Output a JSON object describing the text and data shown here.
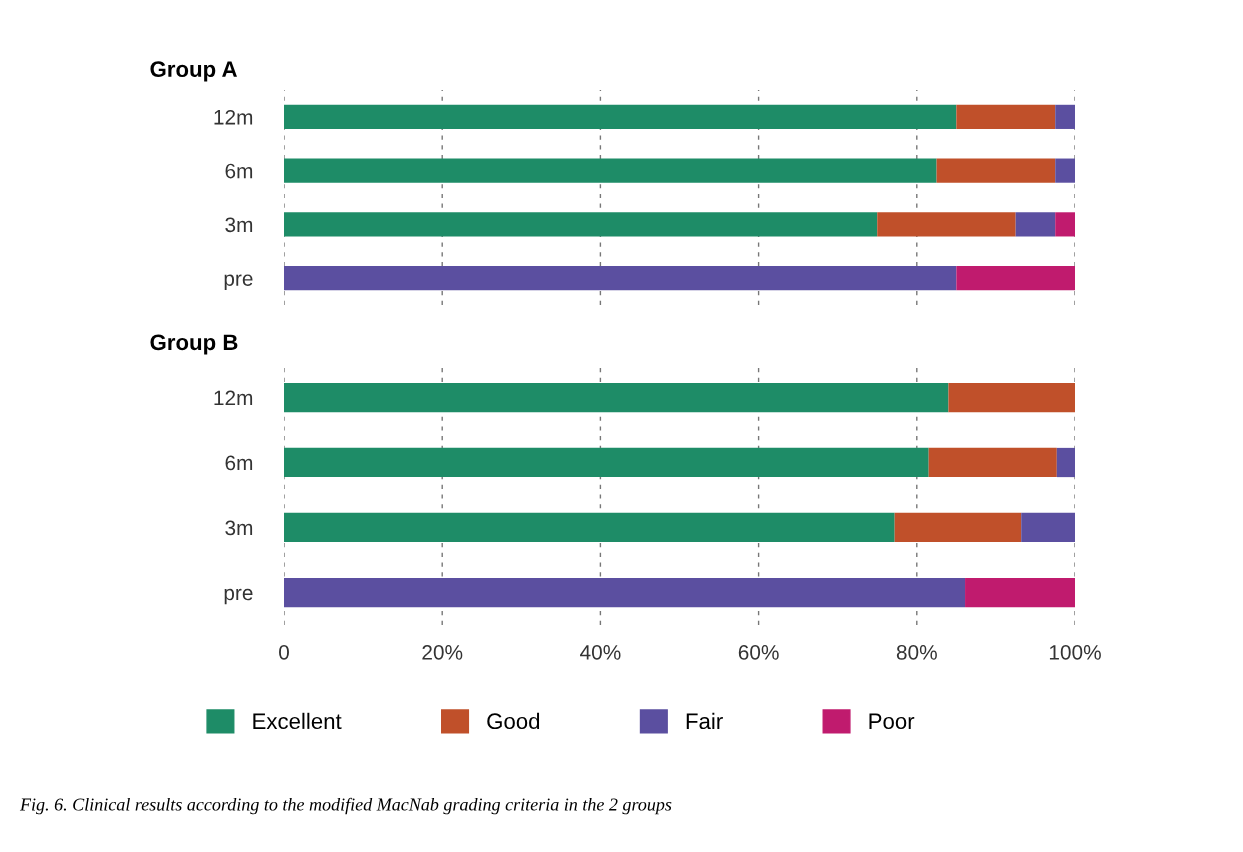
{
  "chart_data": [
    {
      "type": "bar",
      "orientation": "horizontal",
      "stacked": true,
      "title": "Group A",
      "categories": [
        "12m",
        "6m",
        "3m",
        "pre"
      ],
      "xlim": [
        0,
        100
      ],
      "xticks": [
        {
          "value": 0,
          "label": null
        },
        {
          "value": 20,
          "label": null
        },
        {
          "value": 40,
          "label": null
        },
        {
          "value": 60,
          "label": null
        },
        {
          "value": 80,
          "label": null
        },
        {
          "value": 100,
          "label": null
        }
      ],
      "tick_labels": "y",
      "grid": "x",
      "legend": false,
      "series": [
        {
          "color": "#1e8c67",
          "values": [
            85,
            82.5,
            75,
            0
          ]
        },
        {
          "color": "#c0502a",
          "values": [
            12.5,
            15,
            17.5,
            0
          ]
        },
        {
          "color": "#5b4fa0",
          "values": [
            2.5,
            2.5,
            5,
            85
          ]
        },
        {
          "color": "#c01b6e",
          "values": [
            0,
            0,
            2.5,
            15
          ]
        }
      ]
    },
    {
      "type": "bar",
      "orientation": "horizontal",
      "stacked": true,
      "title": "Group B",
      "categories": [
        "12m",
        "6m",
        "3m",
        "pre"
      ],
      "xlim": [
        0,
        100
      ],
      "xticks": [
        {
          "value": 0,
          "label": "0"
        },
        {
          "value": 20,
          "label": "20%"
        },
        {
          "value": 40,
          "label": "40%"
        },
        {
          "value": 60,
          "label": "60%"
        },
        {
          "value": 80,
          "label": "80%"
        },
        {
          "value": 100,
          "label": "100%"
        }
      ],
      "grid": "x",
      "legend": "bottom",
      "series": [
        {
          "name": "Excellent",
          "color": "#1e8c67",
          "values": [
            84,
            81.5,
            77.2,
            0
          ]
        },
        {
          "name": "Good",
          "color": "#c0502a",
          "values": [
            16,
            16.2,
            16,
            0
          ]
        },
        {
          "name": "Fair",
          "color": "#5b4fa0",
          "values": [
            0,
            2.3,
            6.8,
            86.1
          ]
        },
        {
          "name": "Poor",
          "color": "#c01b6e",
          "values": [
            0,
            0,
            0,
            13.9
          ]
        }
      ],
      "annotations": [
        "Fig. 6. Clinical results according to the modified MacNab grading criteria in the 2 groups"
      ]
    }
  ]
}
